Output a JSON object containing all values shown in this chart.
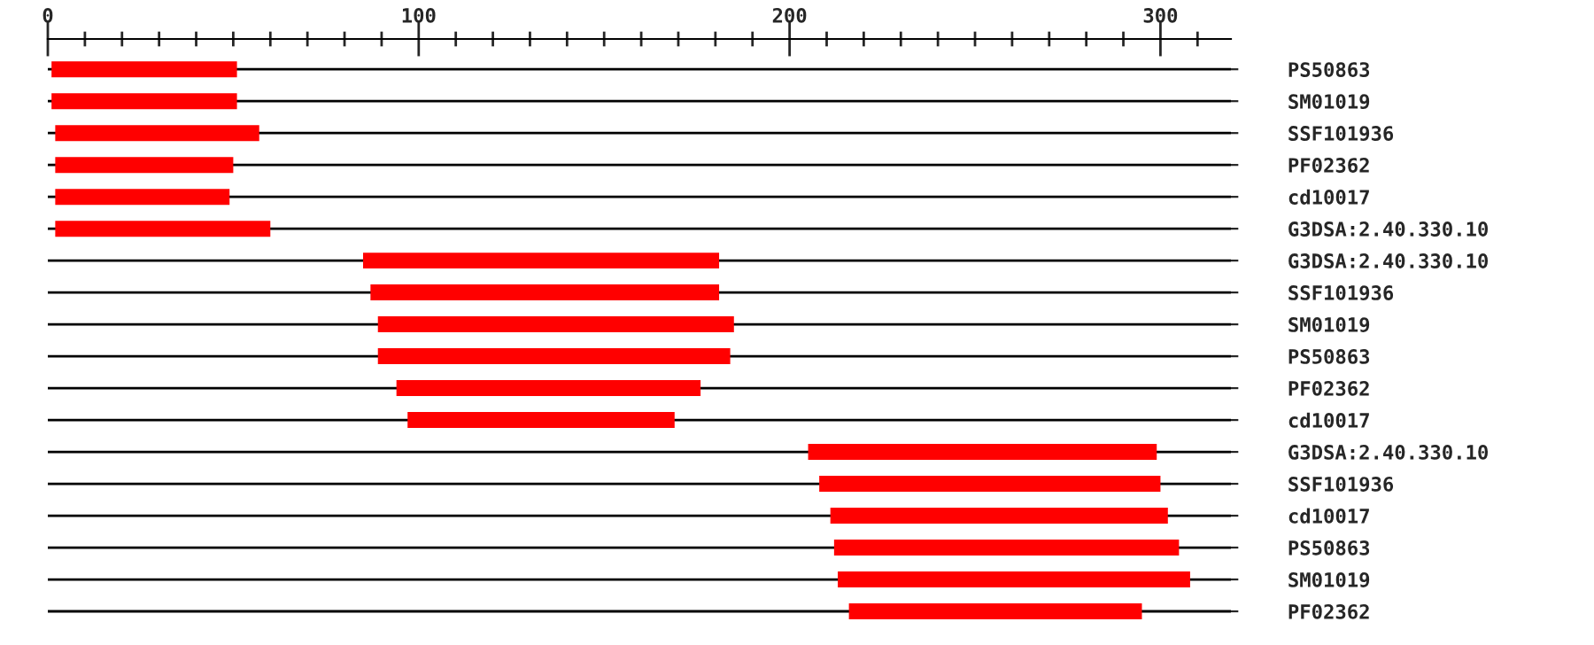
{
  "chart_data": {
    "type": "bar",
    "orientation": "horizontal",
    "categories": [
      "PS50863",
      "SM01019",
      "SSF101936",
      "PF02362",
      "cd10017",
      "G3DSA:2.40.330.10",
      "G3DSA:2.40.330.10",
      "SSF101936",
      "SM01019",
      "PS50863",
      "PF02362",
      "cd10017",
      "G3DSA:2.40.330.10",
      "SSF101936",
      "cd10017",
      "PS50863",
      "SM01019",
      "PF02362"
    ],
    "base": [
      1,
      1,
      2,
      2,
      2,
      2,
      85,
      87,
      89,
      89,
      94,
      97,
      205,
      208,
      211,
      212,
      213,
      216
    ],
    "values": [
      50,
      50,
      55,
      48,
      47,
      58,
      96,
      94,
      96,
      95,
      82,
      72,
      94,
      92,
      91,
      93,
      95,
      79
    ],
    "color": "#ff0000",
    "xlim": [
      0,
      319
    ],
    "xticks": [
      0,
      {
        "value": 10,
        "label": null
      },
      {
        "value": 20,
        "label": null
      },
      {
        "value": 30,
        "label": null
      },
      {
        "value": 40,
        "label": null
      },
      {
        "value": 50,
        "label": null
      },
      {
        "value": 60,
        "label": null
      },
      {
        "value": 70,
        "label": null
      },
      {
        "value": 80,
        "label": null
      },
      {
        "value": 90,
        "label": null
      },
      100,
      {
        "value": 110,
        "label": null
      },
      {
        "value": 120,
        "label": null
      },
      {
        "value": 130,
        "label": null
      },
      {
        "value": 140,
        "label": null
      },
      {
        "value": 150,
        "label": null
      },
      {
        "value": 160,
        "label": null
      },
      {
        "value": 170,
        "label": null
      },
      {
        "value": 180,
        "label": null
      },
      {
        "value": 190,
        "label": null
      },
      200,
      {
        "value": 210,
        "label": null
      },
      {
        "value": 220,
        "label": null
      },
      {
        "value": 230,
        "label": null
      },
      {
        "value": 240,
        "label": null
      },
      {
        "value": 250,
        "label": null
      },
      {
        "value": 260,
        "label": null
      },
      {
        "value": 270,
        "label": null
      },
      {
        "value": 280,
        "label": null
      },
      {
        "value": 290,
        "label": null
      },
      300,
      {
        "value": 310,
        "label": null
      }
    ],
    "grid": "y"
  }
}
